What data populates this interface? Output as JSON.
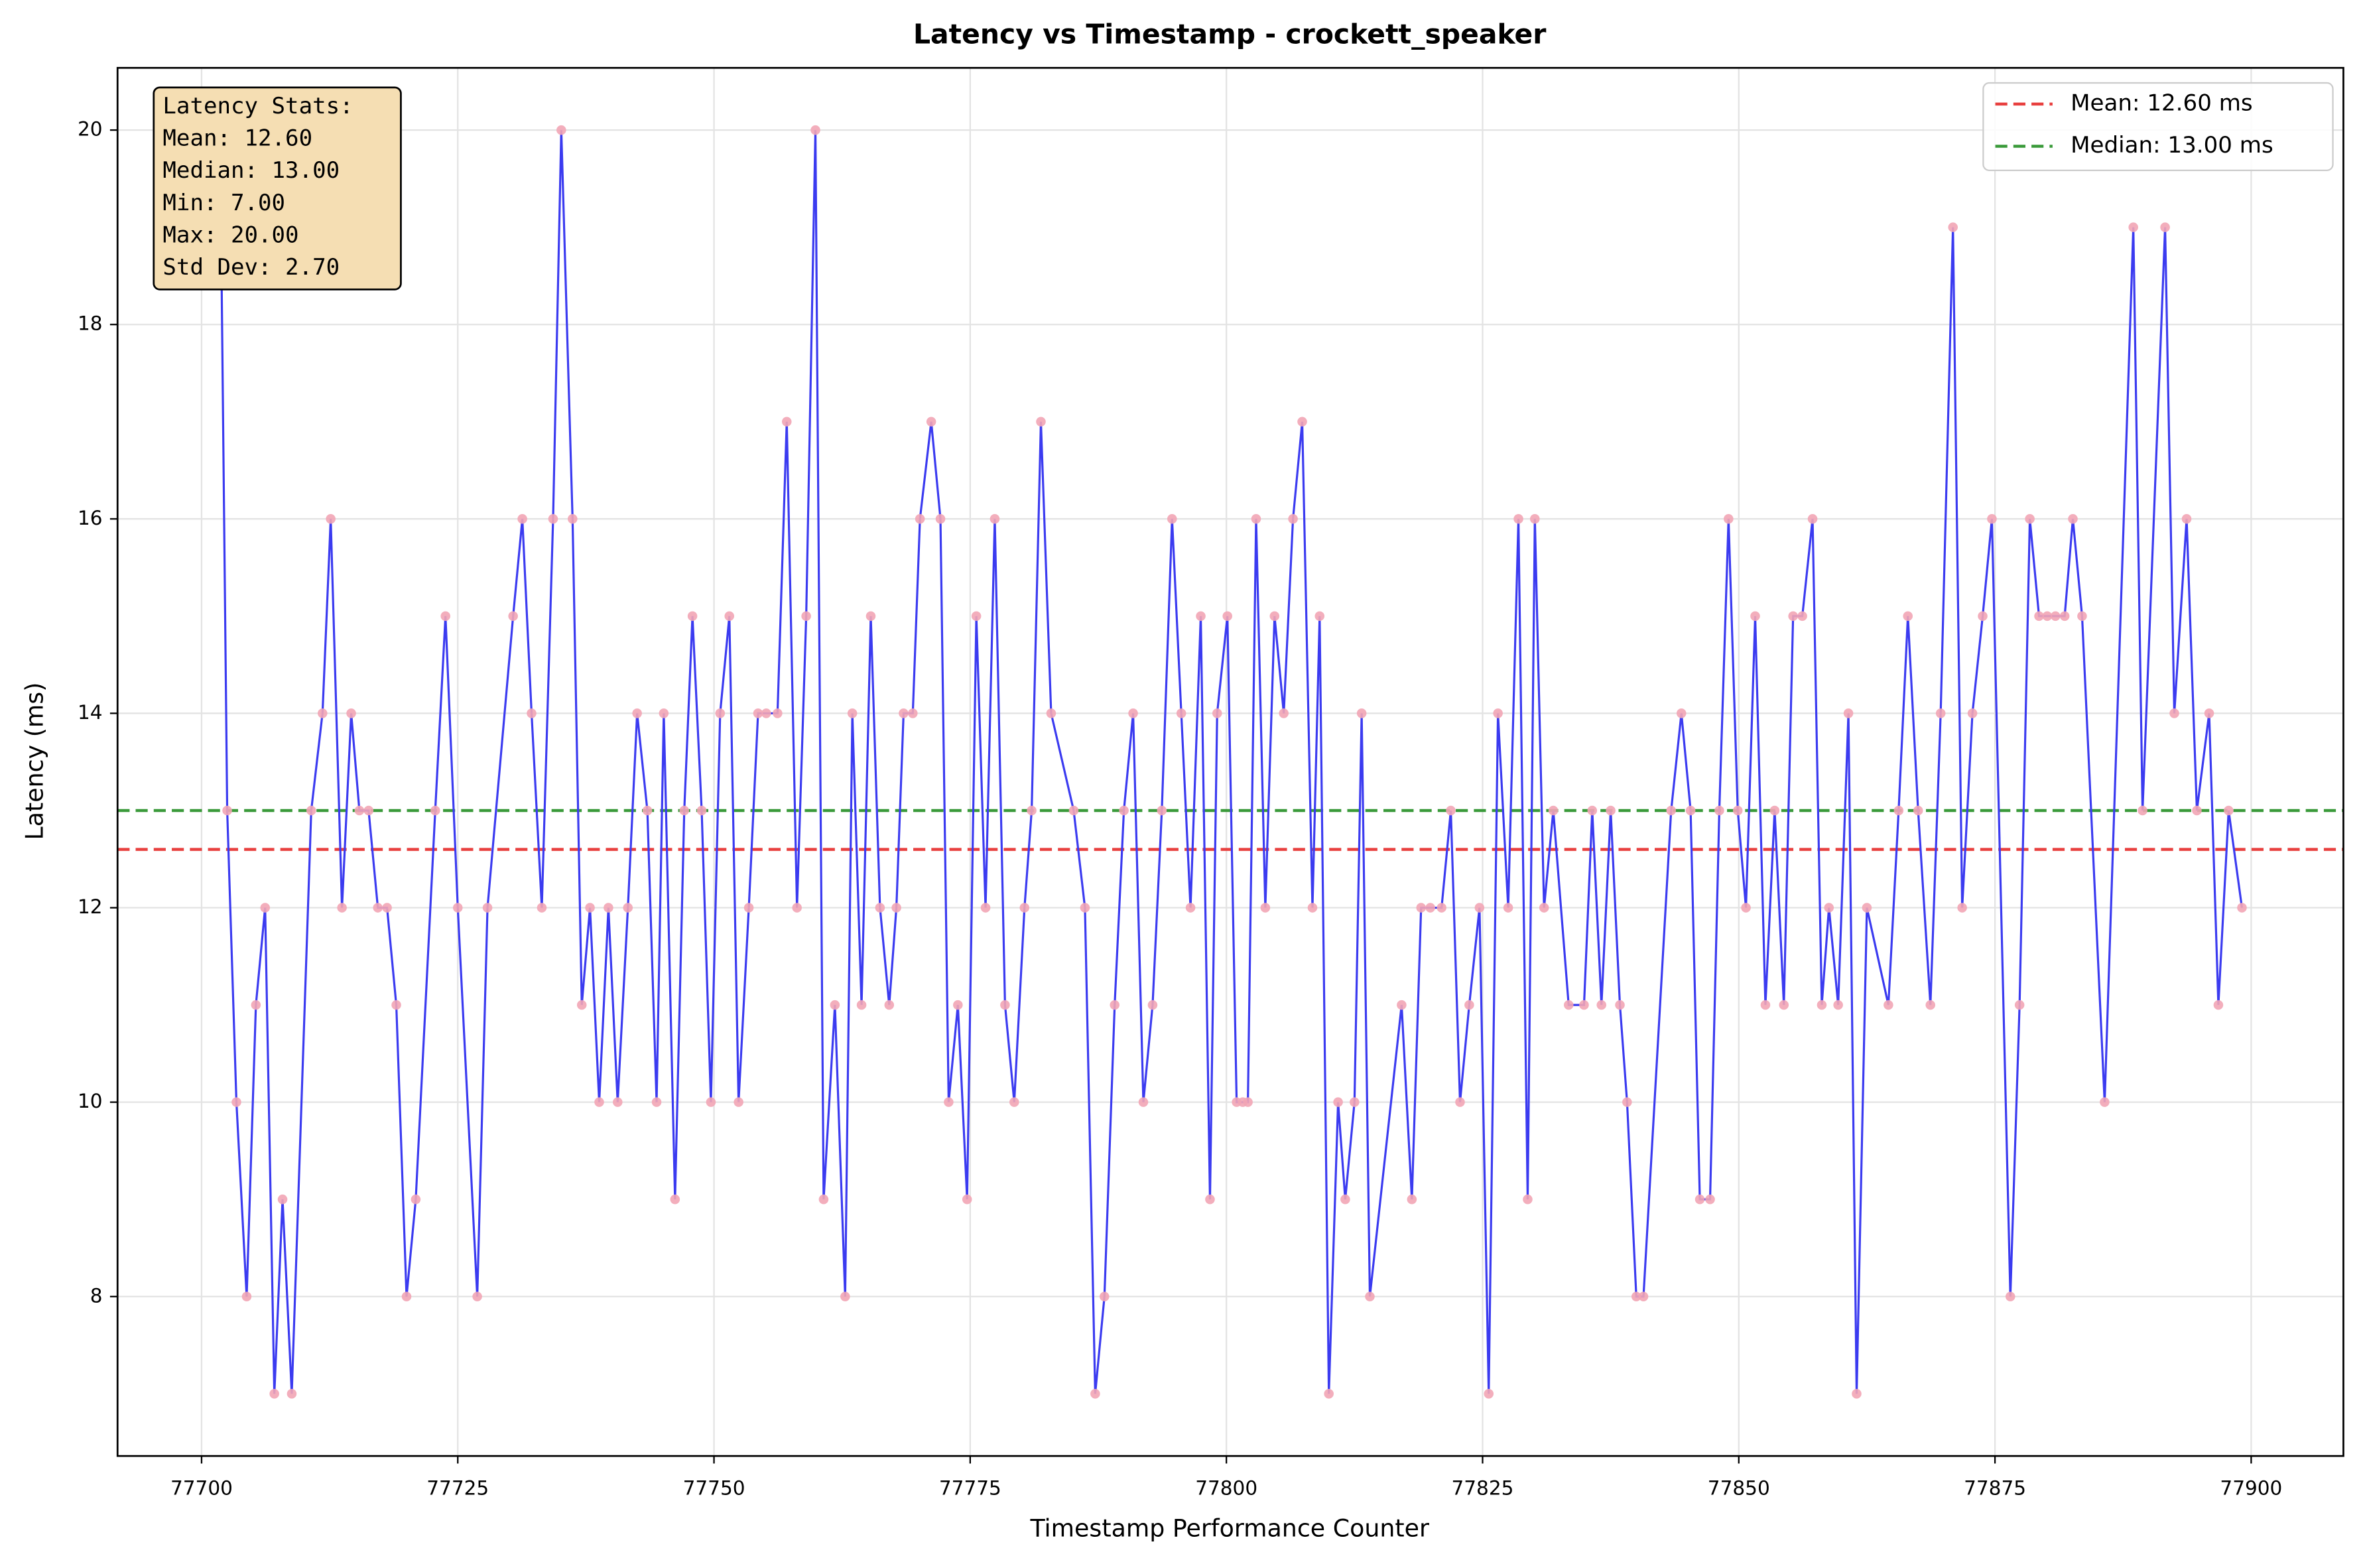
{
  "chart_data": {
    "type": "line",
    "title": "Latency vs Timestamp - crockett_speaker",
    "xlabel": "Timestamp Performance Counter",
    "ylabel": "Latency (ms)",
    "xlim": [
      77691.8,
      77909
    ],
    "ylim": [
      6.36,
      20.64
    ],
    "xticks": [
      77700,
      77725,
      77750,
      77775,
      77800,
      77825,
      77850,
      77875,
      77900
    ],
    "yticks": [
      8,
      10,
      12,
      14,
      16,
      18,
      20
    ],
    "grid": true,
    "legend_position": "upper right",
    "x": [
      77701.9,
      77702.5,
      77703.4,
      77704.4,
      77705.3,
      77706.2,
      77707.1,
      77707.9,
      77708.8,
      77710.7,
      77711.8,
      77712.6,
      77713.7,
      77714.6,
      77715.4,
      77716.3,
      77717.2,
      77718.1,
      77719.0,
      77720.0,
      77720.9,
      77722.8,
      77723.8,
      77725.0,
      77726.9,
      77727.9,
      77730.4,
      77731.3,
      77732.2,
      77733.2,
      77734.3,
      77735.1,
      77736.2,
      77737.1,
      77737.9,
      77738.8,
      77739.7,
      77740.6,
      77741.6,
      77742.5,
      77743.5,
      77744.4,
      77745.1,
      77746.2,
      77747.1,
      77747.9,
      77748.8,
      77749.7,
      77750.6,
      77751.5,
      77752.4,
      77753.4,
      77754.3,
      77755.1,
      77756.2,
      77757.1,
      77758.1,
      77759.0,
      77759.9,
      77760.7,
      77761.8,
      77762.8,
      77763.5,
      77764.4,
      77765.3,
      77766.2,
      77767.1,
      77767.8,
      77768.5,
      77769.4,
      77770.1,
      77771.2,
      77772.1,
      77772.9,
      77773.8,
      77774.7,
      77775.6,
      77776.5,
      77777.4,
      77778.4,
      77779.3,
      77780.3,
      77781.0,
      77781.9,
      77782.9,
      77785.1,
      77786.2,
      77787.2,
      77788.1,
      77789.1,
      77790.0,
      77790.9,
      77791.9,
      77792.8,
      77793.7,
      77794.7,
      77795.6,
      77796.5,
      77797.5,
      77798.4,
      77799.1,
      77800.1,
      77801.0,
      77801.6,
      77802.1,
      77802.9,
      77803.8,
      77804.7,
      77805.6,
      77806.5,
      77807.4,
      77808.4,
      77809.1,
      77810.0,
      77810.9,
      77811.6,
      77812.5,
      77813.2,
      77814.0,
      77817.1,
      77818.1,
      77819.0,
      77819.9,
      77821.0,
      77821.9,
      77822.8,
      77823.7,
      77824.7,
      77825.6,
      77826.5,
      77827.5,
      77828.5,
      77829.4,
      77830.1,
      77831.0,
      77831.9,
      77833.4,
      77834.9,
      77835.7,
      77836.6,
      77837.5,
      77838.4,
      77839.1,
      77840.0,
      77840.7,
      77843.4,
      77844.4,
      77845.3,
      77846.2,
      77847.2,
      77848.1,
      77849.0,
      77849.9,
      77850.7,
      77851.6,
      77852.6,
      77853.5,
      77854.4,
      77855.3,
      77856.2,
      77857.2,
      77858.1,
      77858.8,
      77859.7,
      77860.7,
      77861.5,
      77862.5,
      77864.6,
      77865.6,
      77866.5,
      77867.5,
      77868.7,
      77869.7,
      77870.9,
      77871.8,
      77872.8,
      77873.8,
      77874.7,
      77876.5,
      77877.4,
      77878.4,
      77879.3,
      77880.1,
      77880.9,
      77881.8,
      77882.6,
      77883.5,
      77885.7,
      77888.5,
      77889.4,
      77891.6,
      77892.5,
      77893.7,
      77894.7,
      77895.9,
      77896.8,
      77897.8,
      77899.1
    ],
    "series": [
      {
        "color": "#3b3bf0",
        "marker_color": "#f2a5b5",
        "values": [
          19,
          13,
          10,
          8,
          11,
          12,
          7,
          9,
          7,
          13,
          14,
          16,
          12,
          14,
          13,
          13,
          12,
          12,
          11,
          8,
          9,
          13,
          15,
          12,
          8,
          12,
          15,
          16,
          14,
          12,
          16,
          20,
          16,
          11,
          12,
          10,
          12,
          10,
          12,
          14,
          13,
          10,
          14,
          9,
          13,
          15,
          13,
          10,
          14,
          15,
          10,
          12,
          14,
          14,
          14,
          17,
          12,
          15,
          20,
          9,
          11,
          8,
          14,
          11,
          15,
          12,
          11,
          12,
          14,
          14,
          16,
          17,
          16,
          10,
          11,
          9,
          15,
          12,
          16,
          11,
          10,
          12,
          13,
          17,
          14,
          13,
          12,
          7,
          8,
          11,
          13,
          14,
          10,
          11,
          13,
          16,
          14,
          12,
          15,
          9,
          14,
          15,
          10,
          10,
          10,
          16,
          12,
          15,
          14,
          16,
          17,
          12,
          15,
          7,
          10,
          9,
          10,
          14,
          8,
          11,
          9,
          12,
          12,
          12,
          13,
          10,
          11,
          12,
          7,
          14,
          12,
          16,
          9,
          16,
          12,
          13,
          11,
          11,
          13,
          11,
          13,
          11,
          10,
          8,
          8,
          13,
          14,
          13,
          9,
          9,
          13,
          16,
          13,
          12,
          15,
          11,
          13,
          11,
          15,
          15,
          16,
          11,
          12,
          11,
          14,
          7,
          12,
          11,
          13,
          15,
          13,
          11,
          14,
          19,
          12,
          14,
          15,
          16,
          8,
          11,
          16,
          15,
          15,
          15,
          15,
          16,
          15,
          10,
          19,
          13,
          19,
          14,
          16,
          13,
          14,
          11,
          13,
          12
        ]
      }
    ],
    "reference_lines": [
      {
        "name": "Mean: 12.60 ms",
        "value": 12.6,
        "color": "#e8403f"
      },
      {
        "name": "Median: 13.00 ms",
        "value": 13,
        "color": "#3a9a3a"
      }
    ],
    "stats_box": [
      "Latency Stats:",
      "Mean: 12.60",
      "Median: 13.00",
      "Min: 7.00",
      "Max: 20.00",
      "Std Dev: 2.70"
    ]
  }
}
